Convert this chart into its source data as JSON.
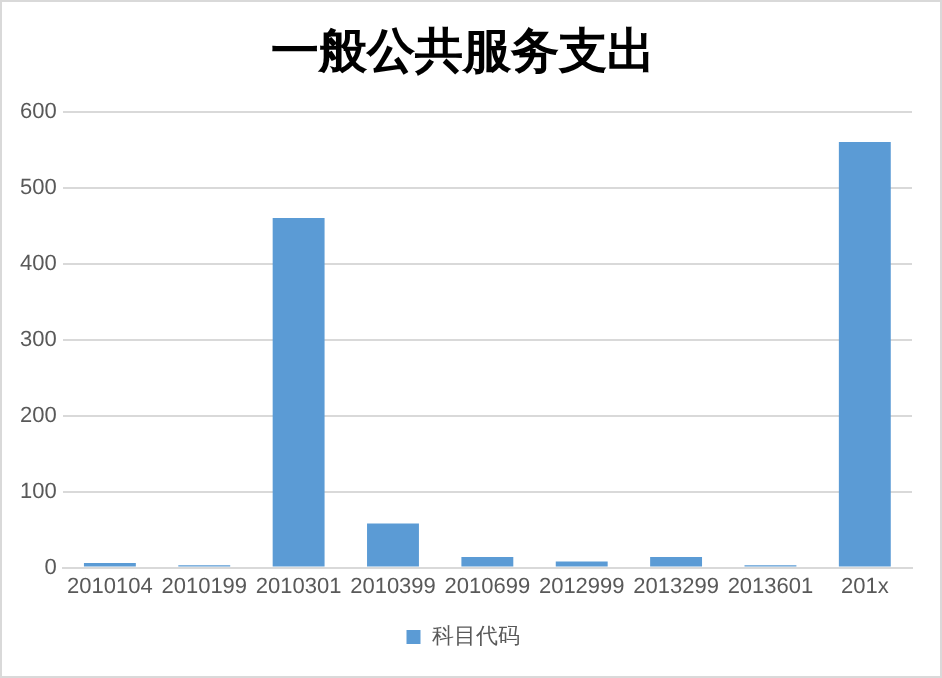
{
  "chart_data": {
    "type": "bar",
    "title": "一般公共服务支出",
    "categories": [
      "2010104",
      "2010199",
      "2010301",
      "2010399",
      "2010699",
      "2012999",
      "2013299",
      "2013601",
      "201x"
    ],
    "series": [
      {
        "name": "科目代码",
        "color": "#5b9bd5",
        "values": [
          6,
          3,
          460,
          58,
          14,
          8,
          14,
          3,
          560
        ]
      }
    ],
    "ylim": [
      0,
      600
    ],
    "yticks": [
      0,
      100,
      200,
      300,
      400,
      500,
      600
    ],
    "grid": "y",
    "legend": "bottom"
  }
}
